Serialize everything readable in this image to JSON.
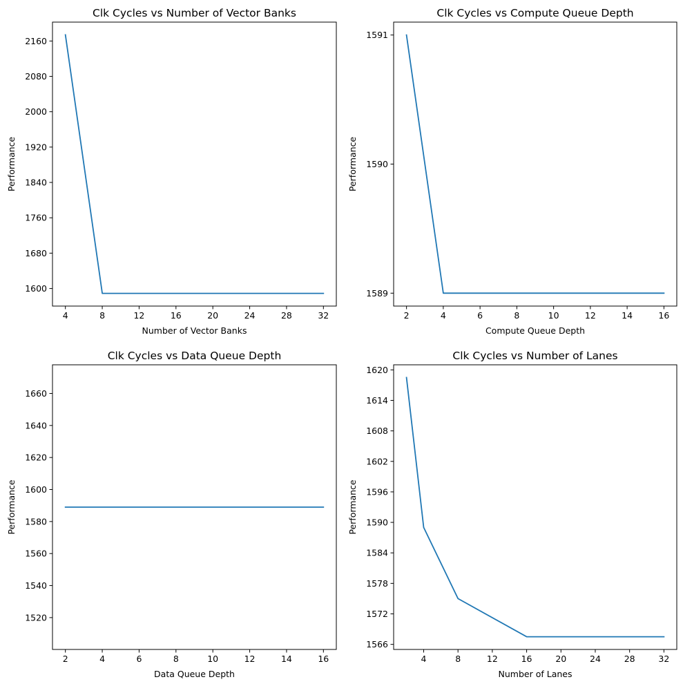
{
  "colors": {
    "line": "#1f77b4",
    "axes": "#000000",
    "background": "#ffffff"
  },
  "chart_data": [
    {
      "type": "line",
      "title": "Clk Cycles vs Number of Vector Banks",
      "xlabel": "Number of Vector Banks",
      "ylabel": "Performance",
      "x": [
        4,
        8,
        16,
        32
      ],
      "y": [
        2174,
        1589,
        1589,
        1589
      ],
      "xlim": [
        2.6,
        33.4
      ],
      "ylim": [
        1560.25,
        2202.75
      ],
      "xticks": [
        4,
        8,
        12,
        16,
        20,
        24,
        28,
        32
      ],
      "yticks": [
        1600,
        1680,
        1760,
        1840,
        1920,
        2000,
        2080,
        2160
      ],
      "grid": false,
      "legend": "none"
    },
    {
      "type": "line",
      "title": "Clk Cycles vs Compute Queue Depth",
      "xlabel": "Compute Queue Depth",
      "ylabel": "Performance",
      "x": [
        2,
        4,
        8,
        16
      ],
      "y": [
        1591,
        1589,
        1589,
        1589
      ],
      "xlim": [
        1.3,
        16.7
      ],
      "ylim": [
        1588.9,
        1591.1
      ],
      "xticks": [
        2,
        4,
        6,
        8,
        10,
        12,
        14,
        16
      ],
      "yticks": [
        1589,
        1590,
        1591
      ],
      "grid": false,
      "legend": "none"
    },
    {
      "type": "line",
      "title": "Clk Cycles vs Data Queue Depth",
      "xlabel": "Data Queue Depth",
      "ylabel": "Performance",
      "x": [
        2,
        4,
        8,
        16
      ],
      "y": [
        1589,
        1589,
        1589,
        1589
      ],
      "xlim": [
        1.3,
        16.7
      ],
      "ylim": [
        1500.1,
        1677.9
      ],
      "xticks": [
        2,
        4,
        6,
        8,
        10,
        12,
        14,
        16
      ],
      "yticks": [
        1520,
        1540,
        1560,
        1580,
        1600,
        1620,
        1640,
        1660
      ],
      "grid": false,
      "legend": "none"
    },
    {
      "type": "line",
      "title": "Clk Cycles vs Number of Lanes",
      "xlabel": "Number of Lanes",
      "ylabel": "Performance",
      "x": [
        2,
        4,
        8,
        16,
        32
      ],
      "y": [
        1618.5,
        1589,
        1575,
        1567.5,
        1567.5
      ],
      "xlim": [
        0.5,
        33.5
      ],
      "ylim": [
        1565.0,
        1621.0
      ],
      "xticks": [
        4,
        8,
        12,
        16,
        20,
        24,
        28,
        32
      ],
      "yticks": [
        1566,
        1572,
        1578,
        1584,
        1590,
        1596,
        1602,
        1608,
        1614,
        1620
      ],
      "grid": false,
      "legend": "none"
    }
  ]
}
